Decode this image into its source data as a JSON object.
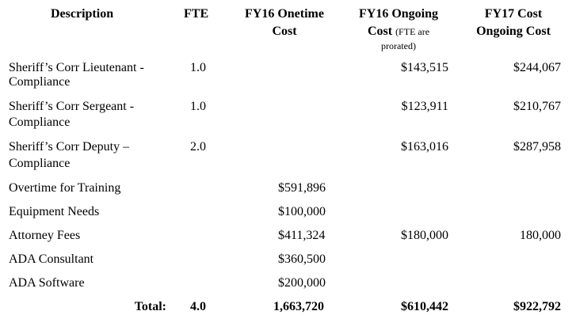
{
  "header": {
    "description": "Description",
    "fte": "FTE",
    "onetime_line1": "FY16 Onetime",
    "onetime_line2": "Cost",
    "ongoing_line1": "FY16 Ongoing",
    "ongoing_line2": "Cost",
    "ongoing_note_1": "(FTE are",
    "ongoing_note_2": "prorated)",
    "fy17_line1": "FY17 Cost",
    "fy17_line2": "Ongoing Cost"
  },
  "rows": [
    {
      "desc1": "Sheriff’s Corr Lieutenant -",
      "desc2": "Compliance",
      "fte": "1.0",
      "onetime": "",
      "ongoing": "$143,515",
      "fy17": "$244,067"
    },
    {
      "desc1": "Sheriff’s Corr Sergeant -",
      "desc2": "Compliance",
      "fte": "1.0",
      "onetime": "",
      "ongoing": "$123,911",
      "fy17": "$210,767"
    },
    {
      "desc1": "Sheriff’s Corr Deputy –",
      "desc2": "Compliance",
      "fte": "2.0",
      "onetime": "",
      "ongoing": "$163,016",
      "fy17": "$287,958"
    },
    {
      "desc1": "Overtime for Training",
      "desc2": "",
      "fte": "",
      "onetime": "$591,896",
      "ongoing": "",
      "fy17": ""
    },
    {
      "desc1": "Equipment Needs",
      "desc2": "",
      "fte": "",
      "onetime": "$100,000",
      "ongoing": "",
      "fy17": ""
    },
    {
      "desc1": "Attorney Fees",
      "desc2": "",
      "fte": "",
      "onetime": "$411,324",
      "ongoing": "$180,000",
      "fy17": "180,000"
    },
    {
      "desc1": "ADA Consultant",
      "desc2": "",
      "fte": "",
      "onetime": "$360,500",
      "ongoing": "",
      "fy17": ""
    },
    {
      "desc1": "ADA Software",
      "desc2": "",
      "fte": "",
      "onetime": "$200,000",
      "ongoing": "",
      "fy17": ""
    }
  ],
  "total": {
    "label": "Total:",
    "fte": "4.0",
    "onetime": "1,663,720",
    "ongoing": "$610,442",
    "fy17": "$922,792"
  }
}
